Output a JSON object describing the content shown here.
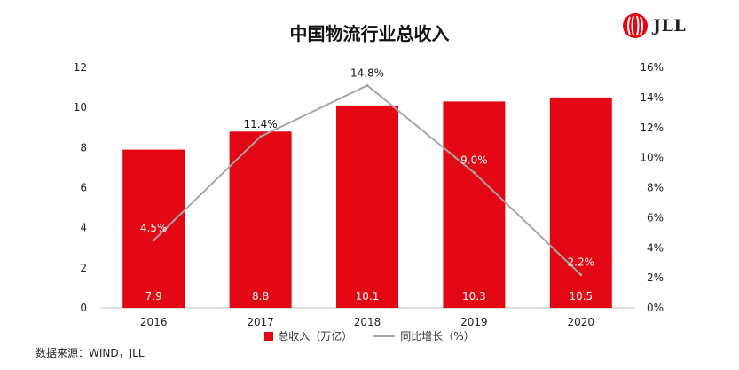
{
  "title": "中国物流行业总收入",
  "logo": {
    "text": "JLL"
  },
  "source": "数据来源：WIND，JLL",
  "colors": {
    "bar": "#e30613",
    "line": "#a6a6a6",
    "axis": "#222222",
    "grid_axis": "#bfbfbf"
  },
  "chart_data": {
    "type": "bar",
    "categories": [
      "2016",
      "2017",
      "2018",
      "2019",
      "2020"
    ],
    "series": [
      {
        "name": "总收入（万亿）",
        "type": "bar",
        "axis": "left",
        "values": [
          7.9,
          8.8,
          10.1,
          10.3,
          10.5
        ],
        "labels": [
          "7.9",
          "8.8",
          "10.1",
          "10.3",
          "10.5"
        ]
      },
      {
        "name": "同比增长（%）",
        "type": "line",
        "axis": "right",
        "values": [
          4.5,
          11.4,
          14.8,
          9.0,
          2.2
        ],
        "labels": [
          "4.5%",
          "11.4%",
          "14.8%",
          "9.0%",
          "2.2%"
        ]
      }
    ],
    "y_left": {
      "min": 0,
      "max": 12,
      "ticks": [
        "0",
        "2",
        "4",
        "6",
        "8",
        "10",
        "12"
      ]
    },
    "y_right": {
      "min": 0,
      "max": 16,
      "ticks": [
        "0%",
        "2%",
        "4%",
        "6%",
        "8%",
        "10%",
        "12%",
        "14%",
        "16%"
      ]
    },
    "grid": false,
    "legend": "bottom"
  }
}
